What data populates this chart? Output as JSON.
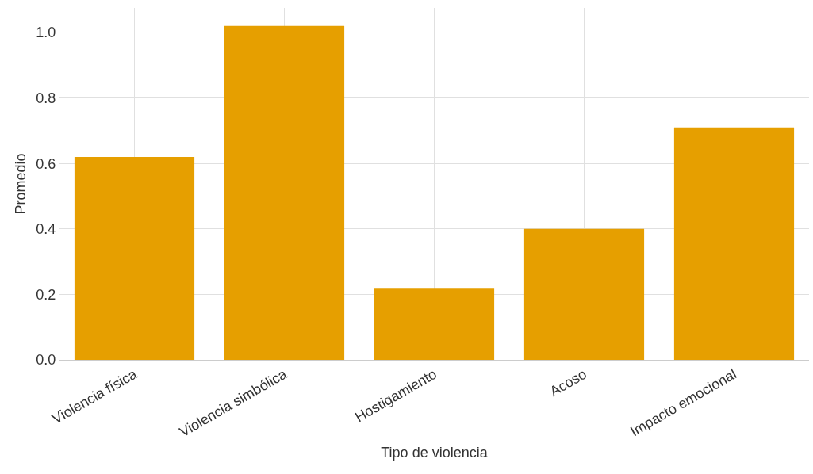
{
  "chart_data": {
    "type": "bar",
    "xlabel": "Tipo de violencia",
    "ylabel": "Promedio",
    "categories": [
      "Violencia física",
      "Violencia simbólica",
      "Hostigamiento",
      "Acoso",
      "Impacto emocional"
    ],
    "values": [
      0.62,
      1.02,
      0.22,
      0.4,
      0.71
    ],
    "color": "#e69f00",
    "ylim": [
      0,
      1.075
    ],
    "yticks": [
      {
        "value": 0,
        "label": "0.0"
      },
      {
        "value": 0.2,
        "label": "0.2"
      },
      {
        "value": 0.4,
        "label": "0.4"
      },
      {
        "value": 0.6,
        "label": "0.6"
      },
      {
        "value": 0.8,
        "label": "0.8"
      },
      {
        "value": 1,
        "label": "1.0"
      }
    ],
    "grid": true,
    "legend": false
  }
}
